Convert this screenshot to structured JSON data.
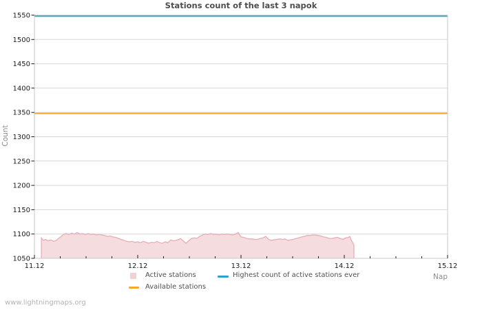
{
  "chart_data": {
    "type": "area",
    "title": "Stations count of the last 3 napok",
    "xlabel": "Nap",
    "ylabel": "Count",
    "xlim": [
      11,
      15
    ],
    "ylim": [
      1050,
      1550
    ],
    "grid": "horizontal",
    "legend_position": "bottom",
    "x_ticks": [
      {
        "value": 11,
        "label": "11.12"
      },
      {
        "value": 12,
        "label": "12.12"
      },
      {
        "value": 13,
        "label": "13.12"
      },
      {
        "value": 14,
        "label": "14.12"
      },
      {
        "value": 15,
        "label": "15.12"
      }
    ],
    "x_minor_step": 0.25,
    "y_ticks": [
      1050,
      1100,
      1150,
      1200,
      1250,
      1300,
      1350,
      1400,
      1450,
      1500,
      1550
    ],
    "series": [
      {
        "name": "Active stations",
        "kind": "area",
        "color": "#e9b1b7",
        "fill_opacity": 0.45,
        "edge_color": "#e7aeb4",
        "points": [
          [
            11.067,
            1092
          ],
          [
            11.087,
            1087
          ],
          [
            11.107,
            1089
          ],
          [
            11.133,
            1086
          ],
          [
            11.16,
            1088
          ],
          [
            11.187,
            1085
          ],
          [
            11.213,
            1087
          ],
          [
            11.233,
            1091
          ],
          [
            11.253,
            1094
          ],
          [
            11.28,
            1099
          ],
          [
            11.307,
            1101
          ],
          [
            11.333,
            1099
          ],
          [
            11.36,
            1102
          ],
          [
            11.387,
            1100
          ],
          [
            11.413,
            1103
          ],
          [
            11.44,
            1100
          ],
          [
            11.467,
            1101
          ],
          [
            11.493,
            1099
          ],
          [
            11.52,
            1101
          ],
          [
            11.547,
            1099
          ],
          [
            11.573,
            1100
          ],
          [
            11.6,
            1098
          ],
          [
            11.627,
            1099
          ],
          [
            11.653,
            1098
          ],
          [
            11.68,
            1097
          ],
          [
            11.707,
            1095
          ],
          [
            11.733,
            1096
          ],
          [
            11.76,
            1094
          ],
          [
            11.787,
            1093
          ],
          [
            11.813,
            1091
          ],
          [
            11.84,
            1089
          ],
          [
            11.867,
            1087
          ],
          [
            11.893,
            1085
          ],
          [
            11.92,
            1084
          ],
          [
            11.947,
            1085
          ],
          [
            11.973,
            1083
          ],
          [
            12.0,
            1084
          ],
          [
            12.027,
            1082
          ],
          [
            12.053,
            1085
          ],
          [
            12.08,
            1083
          ],
          [
            12.107,
            1081
          ],
          [
            12.133,
            1083
          ],
          [
            12.16,
            1082
          ],
          [
            12.187,
            1085
          ],
          [
            12.213,
            1082
          ],
          [
            12.24,
            1081
          ],
          [
            12.267,
            1084
          ],
          [
            12.293,
            1082
          ],
          [
            12.32,
            1088
          ],
          [
            12.347,
            1086
          ],
          [
            12.373,
            1087
          ],
          [
            12.4,
            1089
          ],
          [
            12.413,
            1091
          ],
          [
            12.44,
            1086
          ],
          [
            12.467,
            1081
          ],
          [
            12.493,
            1086
          ],
          [
            12.52,
            1091
          ],
          [
            12.547,
            1092
          ],
          [
            12.573,
            1091
          ],
          [
            12.6,
            1095
          ],
          [
            12.627,
            1098
          ],
          [
            12.653,
            1100
          ],
          [
            12.68,
            1099
          ],
          [
            12.707,
            1101
          ],
          [
            12.733,
            1099
          ],
          [
            12.76,
            1100
          ],
          [
            12.787,
            1098
          ],
          [
            12.813,
            1100
          ],
          [
            12.84,
            1099
          ],
          [
            12.867,
            1100
          ],
          [
            12.893,
            1099
          ],
          [
            12.92,
            1098
          ],
          [
            12.947,
            1100
          ],
          [
            12.973,
            1103
          ],
          [
            13.0,
            1094
          ],
          [
            13.027,
            1093
          ],
          [
            13.053,
            1091
          ],
          [
            13.08,
            1090
          ],
          [
            13.107,
            1090
          ],
          [
            13.133,
            1089
          ],
          [
            13.16,
            1089
          ],
          [
            13.187,
            1091
          ],
          [
            13.213,
            1092
          ],
          [
            13.24,
            1095
          ],
          [
            13.267,
            1089
          ],
          [
            13.293,
            1087
          ],
          [
            13.32,
            1088
          ],
          [
            13.347,
            1089
          ],
          [
            13.373,
            1090
          ],
          [
            13.4,
            1089
          ],
          [
            13.427,
            1090
          ],
          [
            13.453,
            1087
          ],
          [
            13.48,
            1088
          ],
          [
            13.507,
            1089
          ],
          [
            13.533,
            1091
          ],
          [
            13.56,
            1092
          ],
          [
            13.587,
            1094
          ],
          [
            13.613,
            1095
          ],
          [
            13.64,
            1097
          ],
          [
            13.667,
            1097
          ],
          [
            13.693,
            1098
          ],
          [
            13.72,
            1098
          ],
          [
            13.747,
            1097
          ],
          [
            13.773,
            1096
          ],
          [
            13.8,
            1094
          ],
          [
            13.827,
            1093
          ],
          [
            13.853,
            1091
          ],
          [
            13.88,
            1091
          ],
          [
            13.907,
            1092
          ],
          [
            13.933,
            1093
          ],
          [
            13.96,
            1091
          ],
          [
            13.987,
            1089
          ],
          [
            14.013,
            1092
          ],
          [
            14.04,
            1093
          ],
          [
            14.053,
            1095
          ],
          [
            14.067,
            1087
          ],
          [
            14.08,
            1083
          ],
          [
            14.093,
            1078
          ]
        ]
      },
      {
        "name": "Available stations",
        "kind": "hline",
        "color": "#f6a828",
        "value": 1348
      },
      {
        "name": "Highest count of active stations ever",
        "kind": "hline",
        "color": "#2da2c4",
        "value": 1548
      }
    ]
  },
  "footer": {
    "watermark": "www.lightningmaps.org"
  },
  "colors": {
    "active_fill": "#f2d0d4",
    "available_line": "#f6a828",
    "highest_line": "#2da2c4",
    "grid": "#d6d6d6",
    "frame": "#c8c8c8",
    "title_text": "#4d4d4d",
    "axis_text": "#1a1a1a",
    "muted_text": "#8a8a8a",
    "legend_text": "#4f4f4f",
    "watermark_text": "#b2b2b2"
  }
}
